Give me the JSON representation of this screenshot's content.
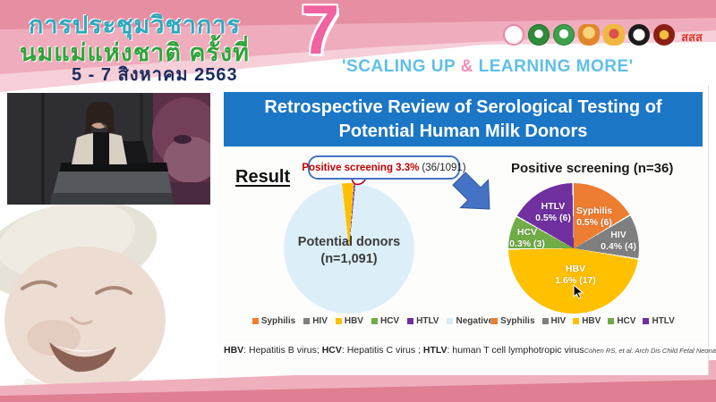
{
  "header": {
    "title_line1": "การประชุมวิชาการ",
    "title_line2": "นมแม่แห่งชาติ ครั้งที่",
    "title_line3": "5 - 7 สิงหาคม 2563",
    "edition_number": "7",
    "slogan_part1": "'SCALING UP ",
    "slogan_amp": "&",
    "slogan_part2": " LEARNING MORE'",
    "sss_logo_text": "สสส",
    "logo_names": [
      "mother-child-foundation",
      "green-health-org-1",
      "green-health-org-2",
      "royal-gold-emblem",
      "royal-crown-emblem",
      "black-university-seal",
      "red-university-seal",
      "sss-thai-health"
    ]
  },
  "slide": {
    "title": "Retrospective Review of Serological Testing of Potential Human Milk Donors",
    "result_label": "Result",
    "callout_highlight": "Positive screening 3.3%",
    "callout_detail": "(36/1091)",
    "footnote": {
      "term1": "HBV",
      "def1": ": Hepatitis B virus; ",
      "term2": "HCV",
      "def2": ": Hepatitis C virus ; ",
      "term3": "HTLV",
      "def3": ": human T cell lymphotropic virus"
    },
    "citation": "Cohen RS, et al. Arch Dis Child Fetal Neonatal Ed. 2010;95:F118-F120.",
    "left_legend": [
      {
        "label": "Syphilis",
        "color": "#ED7D31"
      },
      {
        "label": "HIV",
        "color": "#7F7F7F"
      },
      {
        "label": "HBV",
        "color": "#FFC000"
      },
      {
        "label": "HCV",
        "color": "#70AD47"
      },
      {
        "label": "HTLV",
        "color": "#7030A0"
      },
      {
        "label": "Negative",
        "color": "#D6EBF5"
      }
    ],
    "right_legend": [
      {
        "label": "Syphilis",
        "color": "#ED7D31"
      },
      {
        "label": "HIV",
        "color": "#7F7F7F"
      },
      {
        "label": "HBV",
        "color": "#FFC000"
      },
      {
        "label": "HCV",
        "color": "#70AD47"
      },
      {
        "label": "HTLV",
        "color": "#7030A0"
      }
    ]
  },
  "chart_data": [
    {
      "type": "pie",
      "title": "Potential donors (n=1,091)",
      "center_label_line1": "Potential donors",
      "center_label_line2": "(n=1,091)",
      "total": 1091,
      "slices": [
        {
          "label": "Positive screening",
          "pct": 3.3,
          "count": 36,
          "color": "#FFC000"
        },
        {
          "label": "Negative",
          "pct": 96.7,
          "count": 1055,
          "color": "#DCEFF9"
        }
      ],
      "legend_position": "bottom",
      "start_angle_deg": -6.3,
      "gap_deg": 0.35,
      "total_units": 100,
      "render_slices": [
        {
          "units": 2.95,
          "color": "#FFC000"
        },
        {
          "units": 0.45,
          "color": "#7030A0"
        },
        {
          "units": 96.6,
          "color": "#DCEFF9"
        }
      ]
    },
    {
      "type": "pie",
      "title": "Positive screening (n=36)",
      "total": 36,
      "total_units": 36,
      "start_angle_deg": 0,
      "gap_deg": 1.2,
      "legend_position": "bottom",
      "slices": [
        {
          "label": "Syphilis",
          "value_label": "0.5% (6)",
          "pct": 0.5,
          "count": 6,
          "units": 6,
          "color": "#ED7D31"
        },
        {
          "label": "HIV",
          "value_label": "0.4% (4)",
          "pct": 0.4,
          "count": 4,
          "units": 4,
          "color": "#7F7F7F"
        },
        {
          "label": "HBV",
          "value_label": "1.6% (17)",
          "pct": 1.6,
          "count": 17,
          "units": 17,
          "color": "#FFC000"
        },
        {
          "label": "HCV",
          "value_label": "0.3% (3)",
          "pct": 0.3,
          "count": 3,
          "units": 3,
          "color": "#70AD47"
        },
        {
          "label": "HTLV",
          "value_label": "0.5% (6)",
          "pct": 0.5,
          "count": 6,
          "units": 6,
          "color": "#7030A0"
        }
      ]
    }
  ]
}
